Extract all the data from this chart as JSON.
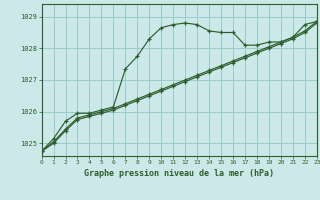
{
  "title": "Graphe pression niveau de la mer (hPa)",
  "bg_color": "#cce8e8",
  "grid_color": "#99cccc",
  "line_color": "#2d5f2d",
  "x_min": 0,
  "x_max": 23,
  "y_min": 1024.6,
  "y_max": 1029.4,
  "y_ticks": [
    1025,
    1026,
    1027,
    1028,
    1029
  ],
  "x_ticks": [
    0,
    1,
    2,
    3,
    4,
    5,
    6,
    7,
    8,
    9,
    10,
    11,
    12,
    13,
    14,
    15,
    16,
    17,
    18,
    19,
    20,
    21,
    22,
    23
  ],
  "series1_x": [
    0,
    1,
    2,
    3,
    4,
    5,
    6,
    7,
    8,
    9,
    10,
    11,
    12,
    13,
    14,
    15,
    16,
    17,
    18,
    19,
    20,
    21,
    22,
    23
  ],
  "series1_y": [
    1024.75,
    1025.15,
    1025.7,
    1025.95,
    1025.95,
    1026.05,
    1026.15,
    1027.35,
    1027.75,
    1028.3,
    1028.65,
    1028.75,
    1028.8,
    1028.75,
    1028.55,
    1028.5,
    1028.5,
    1028.1,
    1028.1,
    1028.2,
    1028.2,
    1028.35,
    1028.75,
    1028.85
  ],
  "series2_x": [
    0,
    1,
    2,
    3,
    4,
    5,
    6,
    7,
    8,
    9,
    10,
    11,
    12,
    13,
    14,
    15,
    16,
    17,
    18,
    19,
    20,
    21,
    22,
    23
  ],
  "series2_y": [
    1024.75,
    1025.05,
    1025.45,
    1025.8,
    1025.9,
    1026.0,
    1026.1,
    1026.25,
    1026.4,
    1026.55,
    1026.7,
    1026.85,
    1027.0,
    1027.15,
    1027.3,
    1027.45,
    1027.6,
    1027.75,
    1027.9,
    1028.05,
    1028.2,
    1028.35,
    1028.55,
    1028.85
  ],
  "series3_x": [
    0,
    1,
    2,
    3,
    4,
    5,
    6,
    7,
    8,
    9,
    10,
    11,
    12,
    13,
    14,
    15,
    16,
    17,
    18,
    19,
    20,
    21,
    22,
    23
  ],
  "series3_y": [
    1024.75,
    1025.0,
    1025.4,
    1025.75,
    1025.85,
    1025.95,
    1026.05,
    1026.2,
    1026.35,
    1026.5,
    1026.65,
    1026.8,
    1026.95,
    1027.1,
    1027.25,
    1027.4,
    1027.55,
    1027.7,
    1027.85,
    1028.0,
    1028.15,
    1028.3,
    1028.5,
    1028.8
  ]
}
